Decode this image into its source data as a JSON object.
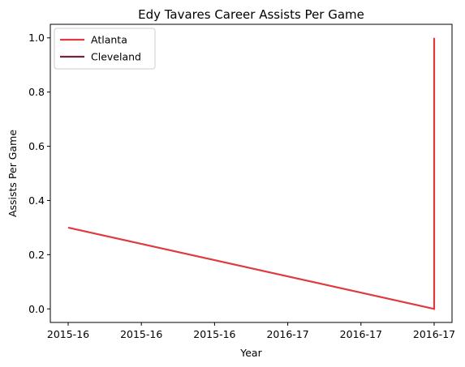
{
  "chart_data": {
    "type": "line",
    "title": "Edy Tavares Career Assists Per Game",
    "xlabel": "Year",
    "ylabel": "Assists Per Game",
    "x_tick_labels": [
      "2015-16",
      "2015-16",
      "2015-16",
      "2016-17",
      "2016-17",
      "2016-17"
    ],
    "y_ticks": [
      0.0,
      0.2,
      0.4,
      0.6,
      0.8,
      1.0
    ],
    "y_tick_labels": [
      "0.0",
      "0.2",
      "0.4",
      "0.6",
      "0.8",
      "1.0"
    ],
    "ylim": [
      -0.05,
      1.05
    ],
    "grid": false,
    "legend_position": "top-left",
    "series": [
      {
        "name": "Atlanta",
        "color": "#e03a3e",
        "points": [
          {
            "x": "2015-16",
            "y": 0.3
          },
          {
            "x": "2016-17",
            "y": 0.0
          },
          {
            "x": "2016-17",
            "y": 1.0
          }
        ]
      },
      {
        "name": "Cleveland",
        "color": "#6f263d",
        "points": []
      }
    ]
  }
}
